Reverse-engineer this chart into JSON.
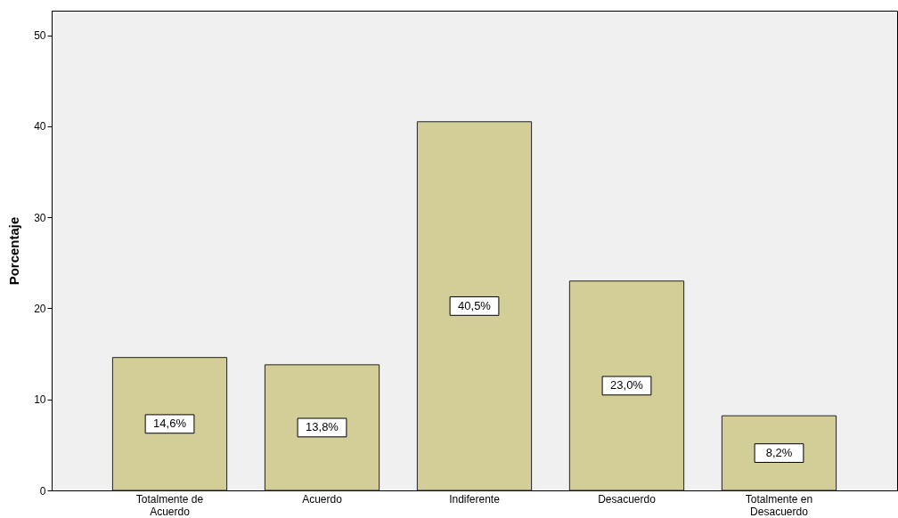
{
  "chart_data": {
    "type": "bar",
    "ylabel": "Porcentaje",
    "categories": [
      "Totalmente de Acuerdo",
      "Acuerdo",
      "Indiferente",
      "Desacuerdo",
      "Totalmente en Desacuerdo"
    ],
    "values": [
      14.6,
      13.8,
      40.5,
      23.0,
      8.2
    ],
    "value_labels": [
      "14,6%",
      "13,8%",
      "40,5%",
      "23,0%",
      "8,2%"
    ],
    "color": "#d3ce98",
    "ylim": [
      0,
      52.7
    ],
    "yticks": [
      0,
      10,
      20,
      30,
      40,
      50
    ],
    "grid": false
  }
}
